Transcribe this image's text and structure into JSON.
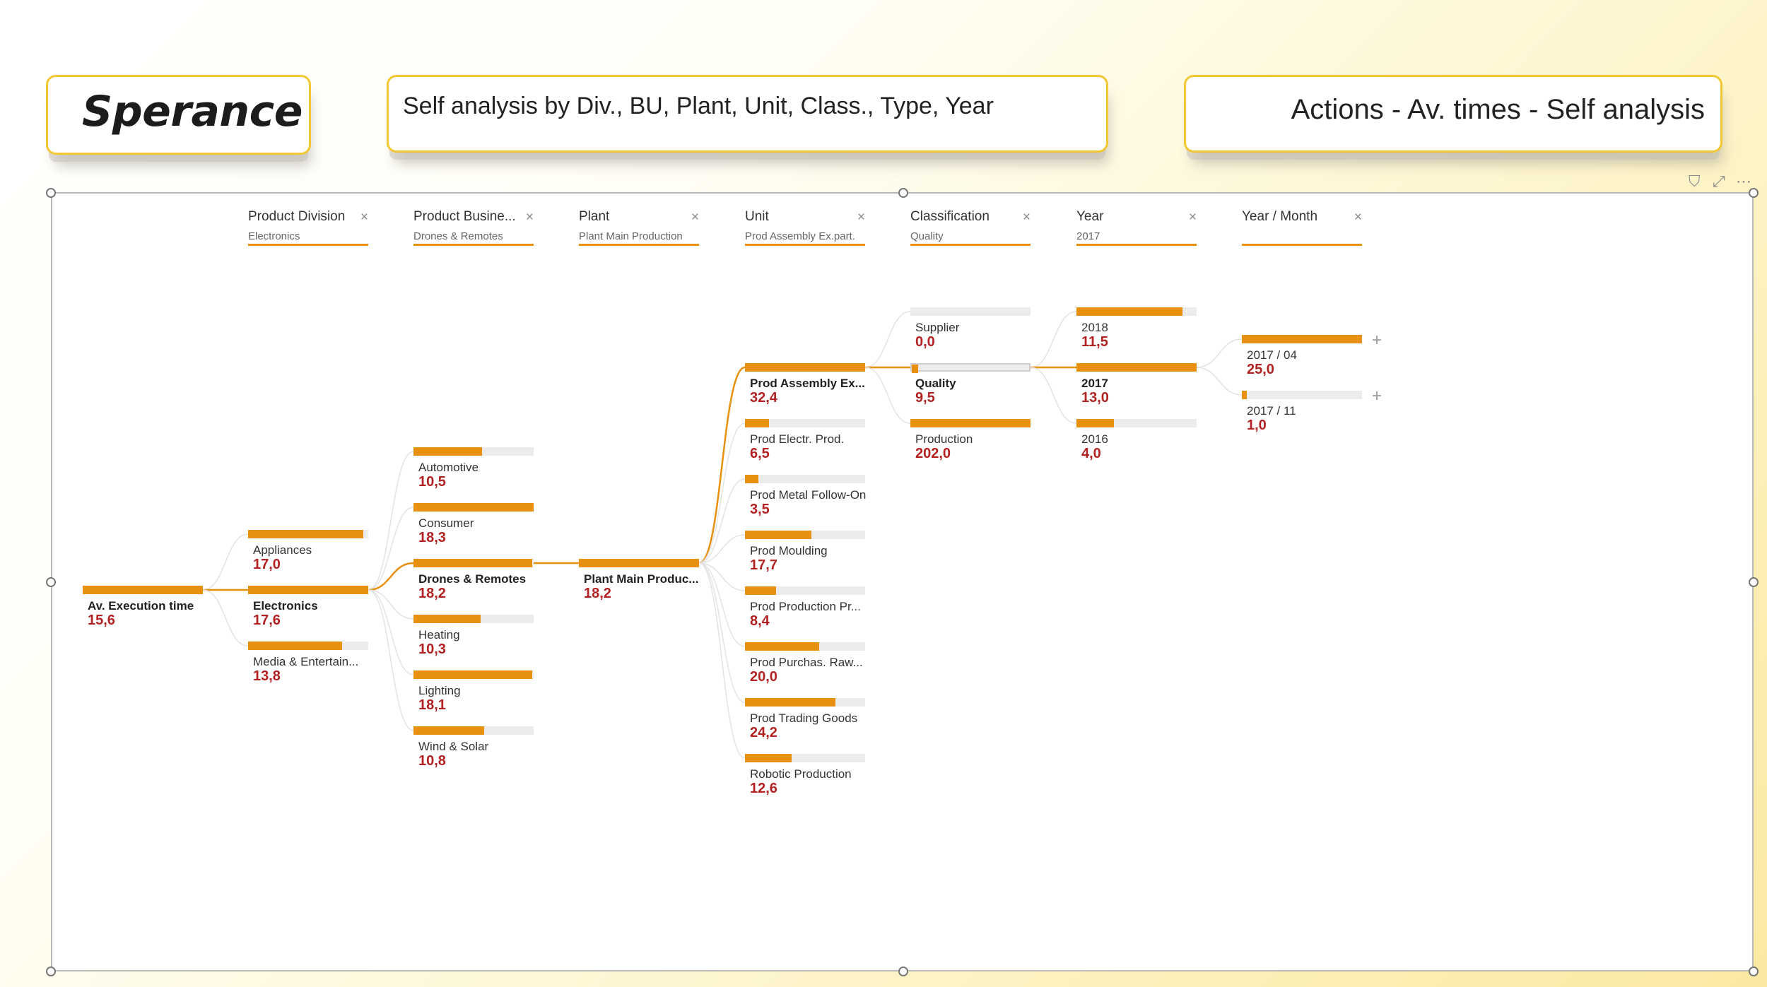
{
  "header": {
    "logo": "Sperance",
    "subtitle": "Self analysis by Div., BU, Plant, Unit, Class., Type, Year",
    "section": "Actions - Av. times - Self analysis"
  },
  "colors": {
    "accent": "#e8900f",
    "value_text": "#b22222",
    "frame_border": "#f2c832"
  },
  "toolbar_icons": [
    "filter-icon",
    "focus-mode-icon",
    "more-options-icon"
  ],
  "toolbar_glyphs": {
    "filter": "⛉",
    "focus": "⤢",
    "more": "⋯"
  },
  "columns": [
    {
      "name": "Product Division",
      "value": "Electronics",
      "close": "×"
    },
    {
      "name": "Product Busine...",
      "value": "Drones & Remotes",
      "close": "×"
    },
    {
      "name": "Plant",
      "value": "Plant Main Production",
      "close": "×"
    },
    {
      "name": "Unit",
      "value": "Prod Assembly Ex.part.",
      "close": "×"
    },
    {
      "name": "Classification",
      "value": "Quality",
      "close": "×"
    },
    {
      "name": "Year",
      "value": "2017",
      "close": "×"
    },
    {
      "name": "Year / Month",
      "value": "",
      "close": "×"
    }
  ],
  "tree": {
    "root": {
      "label": "Av. Execution time",
      "value": "15,6",
      "fill": 1.0
    },
    "levels": [
      {
        "selected": 1,
        "nodes": [
          {
            "label": "Appliances",
            "value": "17,0",
            "fill": 0.96
          },
          {
            "label": "Electronics",
            "value": "17,6",
            "fill": 1.0
          },
          {
            "label": "Media & Entertain...",
            "value": "13,8",
            "fill": 0.78
          }
        ]
      },
      {
        "selected": 2,
        "nodes": [
          {
            "label": "Automotive",
            "value": "10,5",
            "fill": 0.57
          },
          {
            "label": "Consumer",
            "value": "18,3",
            "fill": 1.0
          },
          {
            "label": "Drones & Remotes",
            "value": "18,2",
            "fill": 0.99
          },
          {
            "label": "Heating",
            "value": "10,3",
            "fill": 0.56
          },
          {
            "label": "Lighting",
            "value": "18,1",
            "fill": 0.99
          },
          {
            "label": "Wind & Solar",
            "value": "10,8",
            "fill": 0.59
          }
        ]
      },
      {
        "selected": 0,
        "nodes": [
          {
            "label": "Plant Main Produc...",
            "value": "18,2",
            "fill": 1.0
          }
        ]
      },
      {
        "selected": 0,
        "nodes": [
          {
            "label": "Prod Assembly Ex...",
            "value": "32,4",
            "fill": 1.0
          },
          {
            "label": "Prod Electr. Prod.",
            "value": "6,5",
            "fill": 0.2
          },
          {
            "label": "Prod Metal Follow-On",
            "value": "3,5",
            "fill": 0.11
          },
          {
            "label": "Prod Moulding",
            "value": "17,7",
            "fill": 0.55
          },
          {
            "label": "Prod Production Pr...",
            "value": "8,4",
            "fill": 0.26
          },
          {
            "label": "Prod Purchas. Raw...",
            "value": "20,0",
            "fill": 0.62
          },
          {
            "label": "Prod Trading Goods",
            "value": "24,2",
            "fill": 0.75
          },
          {
            "label": "Robotic Production",
            "value": "12,6",
            "fill": 0.39
          }
        ]
      },
      {
        "selected": 1,
        "nodes": [
          {
            "label": "Supplier",
            "value": "0,0",
            "fill": 0.0
          },
          {
            "label": "Quality",
            "value": "9,5",
            "fill": 0.05
          },
          {
            "label": "Production",
            "value": "202,0",
            "fill": 1.0
          }
        ]
      },
      {
        "selected": 1,
        "nodes": [
          {
            "label": "2018",
            "value": "11,5",
            "fill": 0.88
          },
          {
            "label": "2017",
            "value": "13,0",
            "fill": 1.0
          },
          {
            "label": "2016",
            "value": "4,0",
            "fill": 0.31
          }
        ]
      },
      {
        "selected": -1,
        "nodes": [
          {
            "label": "2017 / 04",
            "value": "25,0",
            "fill": 1.0,
            "expand": "+"
          },
          {
            "label": "2017 / 11",
            "value": "1,0",
            "fill": 0.04,
            "expand": "+"
          }
        ]
      }
    ]
  }
}
